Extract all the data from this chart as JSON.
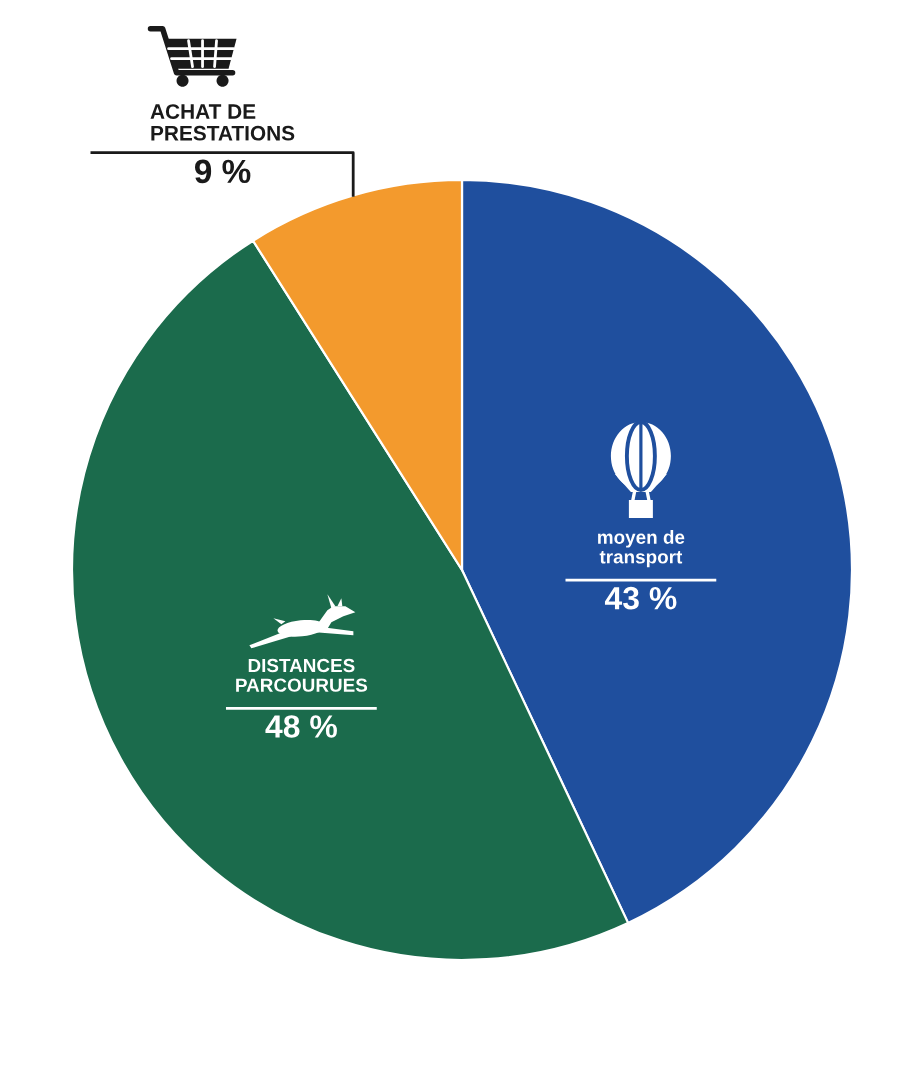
{
  "chart_data": {
    "type": "pie",
    "categories": [
      "moyen de\ntransport",
      "DISTANCES\nPARCOURUES",
      "ACHAT DE\nPRESTATIONS"
    ],
    "values": [
      43,
      48,
      9
    ],
    "value_labels": [
      "43 %",
      "48 %",
      "9 %"
    ],
    "colors": [
      "#1f4f9e",
      "#1b6b4c",
      "#f39a2d"
    ]
  }
}
